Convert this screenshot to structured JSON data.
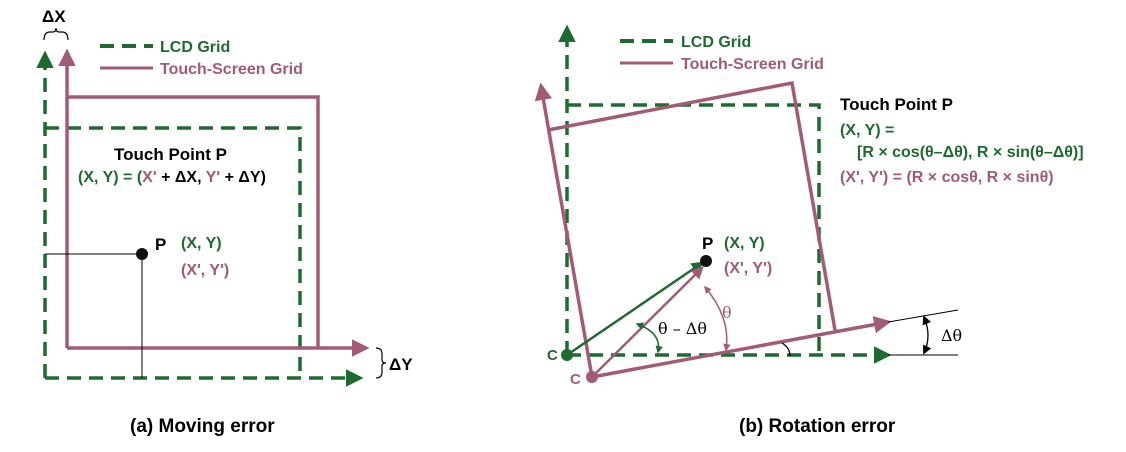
{
  "colors": {
    "lcd": "#1d6b2e",
    "touch": "#a35a77",
    "text": "#000000"
  },
  "panel_a": {
    "delta_x_label": "ΔX",
    "delta_y_label": "ΔY",
    "legend": {
      "lcd": "LCD Grid",
      "touch": "Touch-Screen Grid"
    },
    "touch_point_title": "Touch Point P",
    "equation": {
      "lhs": "(X, Y) = (",
      "x_prime": "X'",
      "plus_dx": " + ΔX, ",
      "y_prime": "Y'",
      "plus_dy": " + ΔY)"
    },
    "point_label": "P",
    "coord_lcd": "(X, Y)",
    "coord_touch": "(X', Y')",
    "caption": "(a) Moving error"
  },
  "panel_b": {
    "legend": {
      "lcd": "LCD Grid",
      "touch": "Touch-Screen Grid"
    },
    "touch_point_title": "Touch Point P",
    "eq_lcd_line1": "(X, Y) =",
    "eq_lcd_line2": "[R × cos(θ–Δθ), R × sin(θ–Δθ)]",
    "eq_touch": "(X', Y') = (R × cosθ, R × sinθ)",
    "point_label": "P",
    "coord_lcd": "(X, Y)",
    "coord_touch": "(X', Y')",
    "center_lcd": "C",
    "center_touch": "C",
    "angle_diff": "θ – Δθ",
    "angle_theta": "θ",
    "angle_delta": "Δθ",
    "caption": "(b) Rotation error"
  }
}
